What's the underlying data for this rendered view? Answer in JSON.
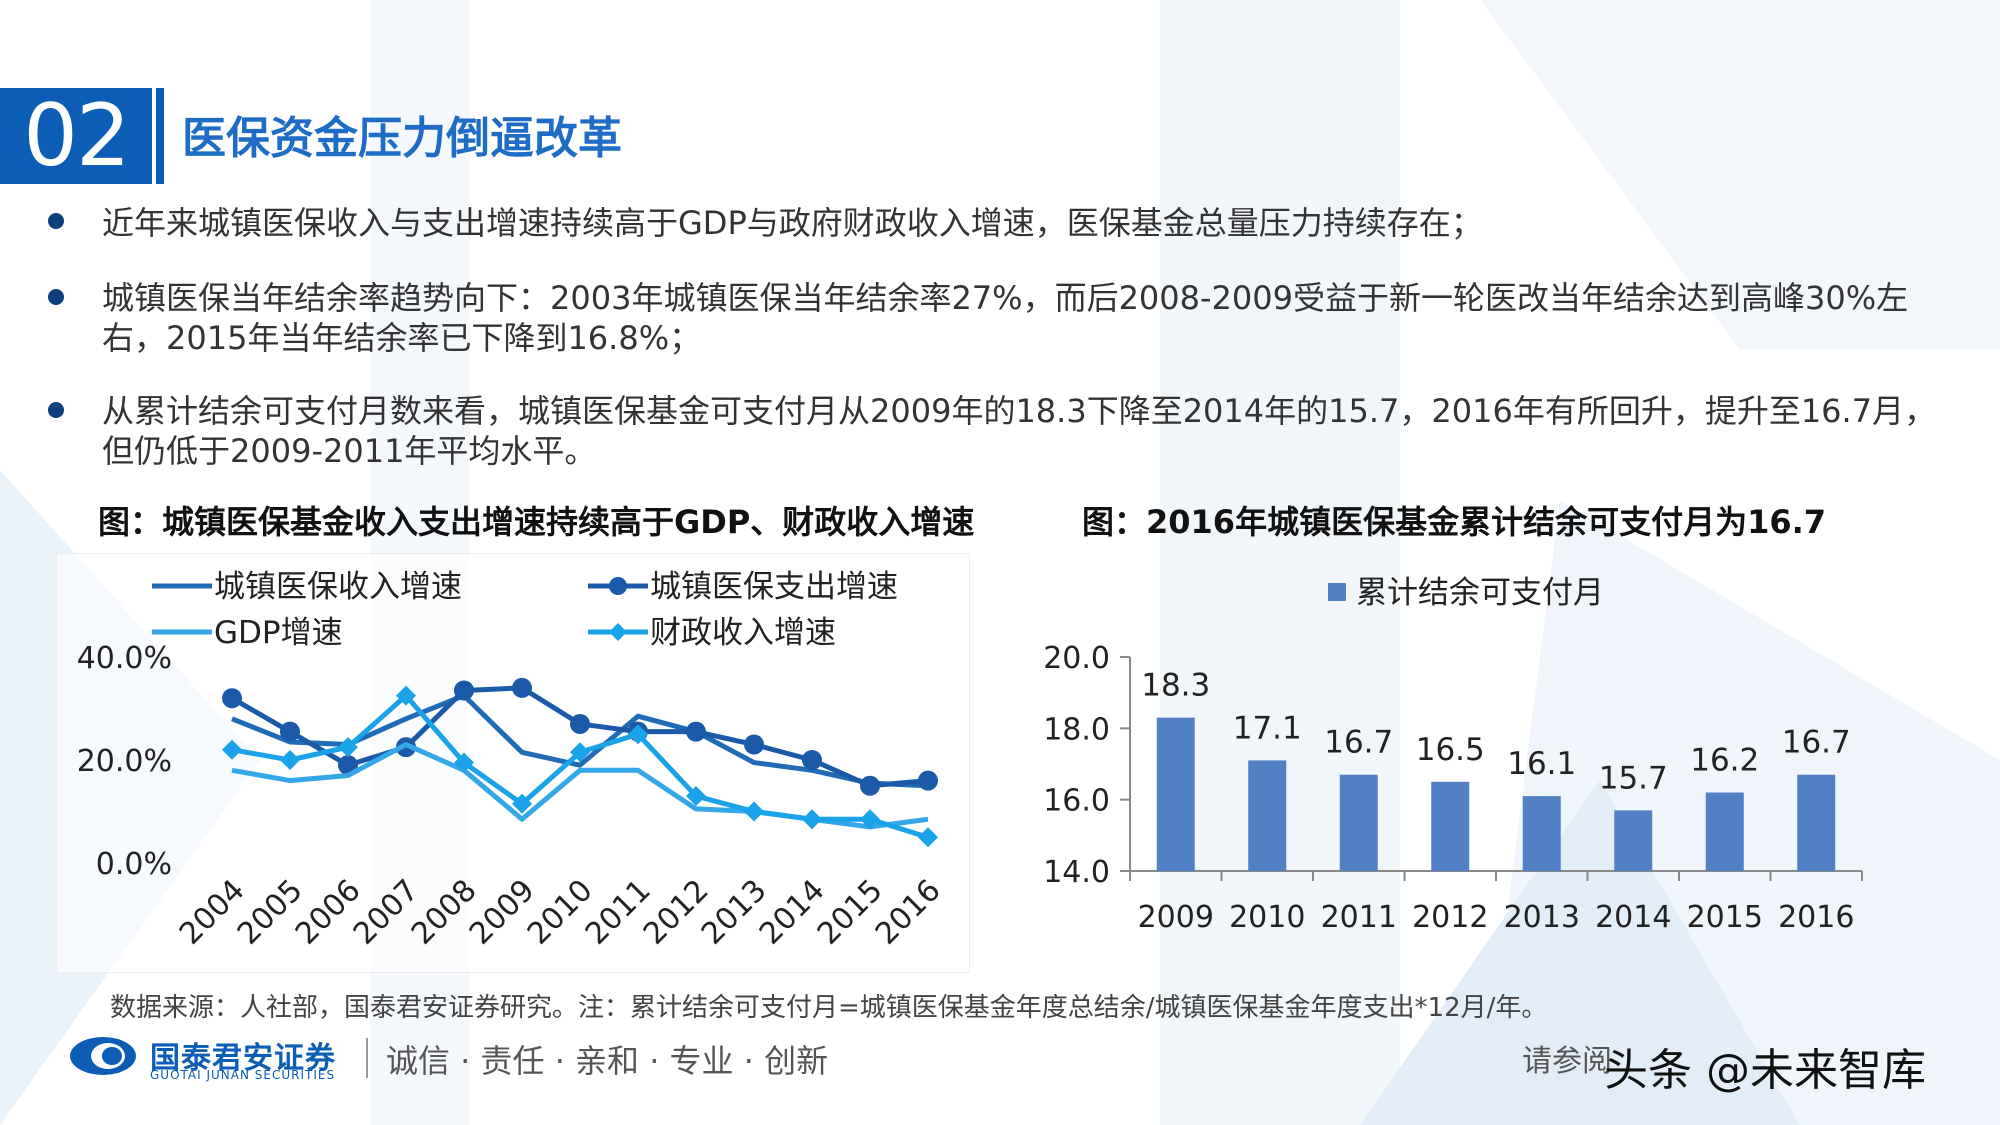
{
  "header": {
    "section_number": "02",
    "title": "医保资金压力倒逼改革"
  },
  "bullets": [
    "近年来城镇医保收入与支出增速持续高于GDP与政府财政收入增速，医保基金总量压力持续存在；",
    "城镇医保当年结余率趋势向下：2003年城镇医保当年结余率27%，而后2008-2009受益于新一轮医改当年结余达到高峰30%左右，2015年当年结余率已下降到16.8%；",
    "从累计结余可支付月数来看，城镇医保基金可支付月从2009年的18.3下降至2014年的15.7，2016年有所回升，提升至16.7月，但仍低于2009-2011年平均水平。"
  ],
  "figures": {
    "left_title": "图：城镇医保基金收入支出增速持续高于GDP、财政收入增速",
    "right_title": "图：2016年城镇医保基金累计结余可支付月为16.7"
  },
  "chart_data": [
    {
      "type": "line",
      "x": [
        "2004",
        "2005",
        "2006",
        "2007",
        "2008",
        "2009",
        "2010",
        "2011",
        "2012",
        "2013",
        "2014",
        "2015",
        "2016"
      ],
      "ylim": [
        0,
        40
      ],
      "yticks": [
        "40.0%",
        "20.0%",
        "0.0%"
      ],
      "grid": false,
      "legend_position": "top",
      "series": [
        {
          "name": "城镇医保收入增速",
          "color": "#1f6bb5",
          "marker": "none",
          "values": [
            28.0,
            23.5,
            23.0,
            28.0,
            32.5,
            21.5,
            19.0,
            28.5,
            25.5,
            19.5,
            18.0,
            15.5,
            15.0
          ]
        },
        {
          "name": "城镇医保支出增速",
          "color": "#1a5aa8",
          "marker": "circle",
          "values": [
            32.0,
            25.5,
            19.0,
            22.5,
            33.5,
            34.0,
            27.0,
            25.5,
            25.5,
            23.0,
            20.0,
            15.0,
            16.0
          ]
        },
        {
          "name": "GDP增速",
          "color": "#33a7e8",
          "marker": "none",
          "values": [
            18.0,
            16.0,
            17.0,
            23.0,
            18.0,
            8.5,
            18.0,
            18.0,
            10.5,
            10.0,
            8.5,
            7.0,
            8.5
          ]
        },
        {
          "name": "财政收入增速",
          "color": "#1aa3e8",
          "marker": "diamond",
          "values": [
            22.0,
            20.0,
            22.5,
            32.5,
            19.5,
            11.5,
            21.5,
            25.0,
            13.0,
            10.0,
            8.5,
            8.5,
            5.0
          ]
        }
      ]
    },
    {
      "type": "bar",
      "categories": [
        "2009",
        "2010",
        "2011",
        "2012",
        "2013",
        "2014",
        "2015",
        "2016"
      ],
      "series": [
        {
          "name": "累计结余可支付月",
          "color": "#5181c4",
          "values": [
            18.3,
            17.1,
            16.7,
            16.5,
            16.1,
            15.7,
            16.2,
            16.7
          ]
        }
      ],
      "data_labels": [
        "18.3",
        "17.1",
        "16.7",
        "16.5",
        "16.1",
        "15.7",
        "16.2",
        "16.7"
      ],
      "ylim": [
        14.0,
        20.0
      ],
      "yticks": [
        "20.0",
        "18.0",
        "16.0",
        "14.0"
      ],
      "grid": false,
      "legend_position": "top"
    }
  ],
  "footer": {
    "source": "数据来源：人社部，国泰君安证券研究。注：累计结余可支付月=城镇医保基金年度总结余/城镇医保基金年度支出*12月/年。",
    "logo_cn": "国泰君安证券",
    "logo_en": "GUOTAI JUNAN SECURITIES",
    "slogan": "诚信 · 责任 · 亲和 · 专业 · 创新",
    "disclaimer": "请参阅",
    "watermark": "头条 @未来智库"
  }
}
